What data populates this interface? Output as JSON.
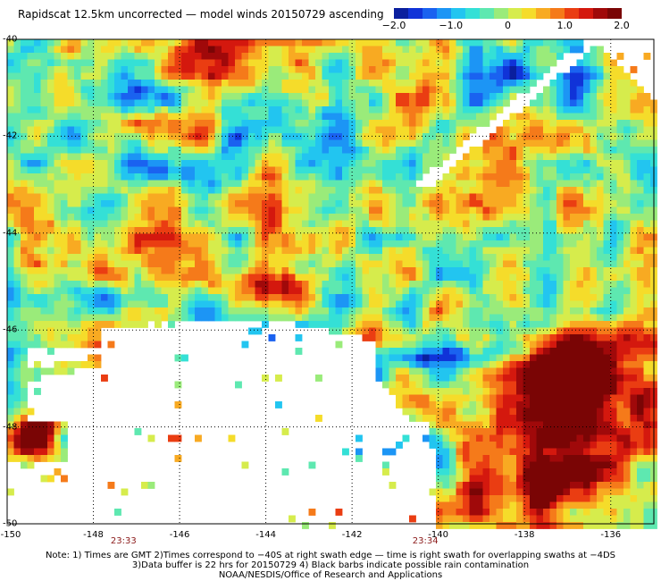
{
  "title": "Rapidscat 12.5km uncorrected — model winds 20150729 ascending",
  "colorbar": {
    "colors": [
      "#0a1f9e",
      "#1033d8",
      "#1a62f0",
      "#1c95f5",
      "#22c5f0",
      "#34e0d6",
      "#5ee8b0",
      "#9aeb7a",
      "#d6ec4c",
      "#f5dc2a",
      "#f8aa22",
      "#f57a1a",
      "#ea3d12",
      "#d4180e",
      "#a0090a",
      "#7a0505"
    ],
    "labels": [
      {
        "value": -2.0,
        "text": "−2.0"
      },
      {
        "value": -1.0,
        "text": "−1.0"
      },
      {
        "value": 0,
        "text": "0"
      },
      {
        "value": 1.0,
        "text": "1.0"
      },
      {
        "value": 2.0,
        "text": "2.0"
      }
    ]
  },
  "map": {
    "lon_range": [
      -150,
      -135
    ],
    "lat_range": [
      -50,
      -40
    ],
    "lon_ticks": [
      {
        "value": -150,
        "text": "-150"
      },
      {
        "value": -148,
        "text": "-148"
      },
      {
        "value": -146,
        "text": "-146"
      },
      {
        "value": -144,
        "text": "-144"
      },
      {
        "value": -142,
        "text": "-142"
      },
      {
        "value": -140,
        "text": "-140"
      },
      {
        "value": -138,
        "text": "-138"
      },
      {
        "value": -136,
        "text": "-136"
      }
    ],
    "lat_ticks": [
      {
        "value": -40,
        "text": "-40"
      },
      {
        "value": -42,
        "text": "-42"
      },
      {
        "value": -44,
        "text": "-44"
      },
      {
        "value": -46,
        "text": "-46"
      },
      {
        "value": -48,
        "text": "-48"
      },
      {
        "value": -50,
        "text": "-50"
      }
    ],
    "time_labels": [
      {
        "lon": -147.3,
        "text": "23:33"
      },
      {
        "lon": -140.3,
        "text": "23:34"
      }
    ]
  },
  "notes": [
    "Note: 1) Times are GMT 2)Times correspond to −40S at right swath edge — time is right swath for overlapping swaths at −4DS",
    "3)Data buffer is 22 hrs for 20150729 4) Black barbs indicate possible rain contamination",
    "NOAA/NESDIS/Office of Research and Applications"
  ]
}
